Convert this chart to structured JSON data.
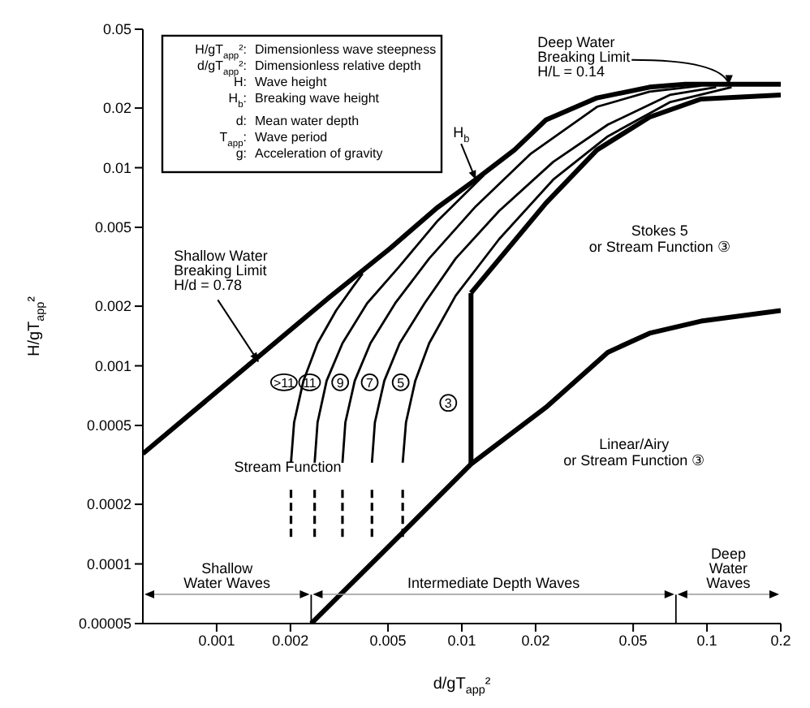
{
  "chart_data": {
    "type": "line",
    "xlabel": "d/gT$_{app}$²",
    "ylabel": "H/gT$_{app}$²",
    "log": "xy",
    "xlim": [
      0.0005,
      0.2
    ],
    "xticks": [
      0.001,
      0.002,
      0.005,
      0.01,
      0.02,
      0.05,
      0.1,
      0.2
    ],
    "ylim": [
      5e-05,
      0.05
    ],
    "yticks": [
      {
        "value": 5e-05,
        "label": "0.00005"
      },
      0.0001,
      0.0002,
      0.0005,
      0.001,
      0.002,
      0.005,
      0.01,
      0.02,
      0.05
    ],
    "grid": false,
    "legend": false,
    "marker": "none",
    "series": [
      {
        "color": "#000000",
        "x": [
          0.0005,
          0.00286,
          0.00512,
          0.00792,
          0.0114,
          0.0164,
          0.022,
          0.0356,
          0.0583,
          0.0815,
          0.2
        ],
        "values": [
          0.00036,
          0.0022,
          0.00393,
          0.00627,
          0.00871,
          0.0123,
          0.0174,
          0.0225,
          0.0255,
          0.0264,
          0.0264
        ]
      },
      {
        "color": "#000000",
        "x": [
          0.00243,
          0.00512,
          0.0109,
          0.022,
          0.0394,
          0.0583,
          0.0944,
          0.2
        ],
        "values": [
          5e-05,
          0.000125,
          0.000319,
          0.000616,
          0.00117,
          0.00146,
          0.00168,
          0.0019
        ]
      },
      {
        "color": "#000000",
        "x": [
          0.0109,
          0.0109
        ],
        "values": [
          0.000319,
          0.00233
        ]
      },
      {
        "color": "#000000",
        "x": [
          0.0109,
          0.022,
          0.0356,
          0.0583,
          0.0944,
          0.2
        ],
        "values": [
          0.00233,
          0.00661,
          0.0123,
          0.018,
          0.0222,
          0.0233
        ]
      },
      {
        "color": "#000000",
        "x": [
          0.00574,
          0.00592,
          0.00646,
          0.00736,
          0.00944,
          0.0142,
          0.0236,
          0.0394,
          0.0705,
          0.126
        ],
        "values": [
          0.000324,
          0.000518,
          0.000841,
          0.0013,
          0.00226,
          0.00436,
          0.00871,
          0.0144,
          0.0214,
          0.0255
        ]
      },
      {
        "color": "#000000",
        "x": [
          0.0043,
          0.00442,
          0.00483,
          0.00558,
          0.00705,
          0.00944,
          0.0142,
          0.0236,
          0.0394,
          0.0705,
          0.109
        ],
        "values": [
          0.000324,
          0.000518,
          0.000841,
          0.0013,
          0.00207,
          0.00348,
          0.00605,
          0.0107,
          0.0165,
          0.0233,
          0.0255
        ]
      },
      {
        "color": "#000000",
        "x": [
          0.00326,
          0.00335,
          0.00366,
          0.00424,
          0.00535,
          0.00736,
          0.0114,
          0.019,
          0.0356,
          0.0583,
          0.0944
        ],
        "values": [
          0.000324,
          0.000518,
          0.000841,
          0.0013,
          0.00207,
          0.00348,
          0.00638,
          0.0117,
          0.0203,
          0.0242,
          0.0259
        ]
      },
      {
        "color": "#000000",
        "x": [
          0.00251,
          0.00258,
          0.00281,
          0.00326,
          0.00411,
          0.00551,
          0.00792,
          0.0123
        ],
        "values": [
          0.000324,
          0.000518,
          0.000841,
          0.0013,
          0.00207,
          0.00313,
          0.00535,
          0.00917
        ]
      },
      {
        "color": "#000000",
        "x": [
          0.00201,
          0.00207,
          0.00226,
          0.00258,
          0.00307,
          0.00356,
          0.00394
        ],
        "values": [
          0.000324,
          0.000518,
          0.000841,
          0.0013,
          0.0019,
          0.00246,
          0.00292
        ]
      },
      {
        "color": "#000000",
        "line_style": "dashed",
        "x": [
          0.00201,
          0.00201
        ],
        "values": [
          0.000137,
          0.000246
        ]
      },
      {
        "color": "#000000",
        "line_style": "dashed",
        "x": [
          0.00251,
          0.00251
        ],
        "values": [
          0.000137,
          0.000246
        ]
      },
      {
        "color": "#000000",
        "line_style": "dashed",
        "x": [
          0.00326,
          0.00326
        ],
        "values": [
          0.000137,
          0.000246
        ]
      },
      {
        "color": "#000000",
        "line_style": "dashed",
        "x": [
          0.0043,
          0.0043
        ],
        "values": [
          0.000137,
          0.000246
        ]
      },
      {
        "color": "#000000",
        "line_style": "dashed",
        "x": [
          0.00574,
          0.00574
        ],
        "values": [
          0.000137,
          0.000246
        ]
      },
      {
        "color": "#000000",
        "x": [
          0.00243,
          0.00243
        ],
        "values": [
          5e-05,
          7e-05
        ]
      },
      {
        "color": "#000000",
        "x": [
          0.0747,
          0.0747
        ],
        "values": [
          5e-05,
          7e-05
        ]
      }
    ],
    "annotations": [
      "H/gT$_{app}$²: Dimensionless wave steepness",
      "d/gT$_{app}$²: Dimensionless relative depth",
      "H: Wave height",
      "H$_{b}$: Breaking wave height",
      "d: Mean water depth",
      "T$_{app}$: Wave period",
      "g: Acceleration of gravity",
      {
        "text": "Shallow Water\nBreaking Limit\nH/d = 0.78",
        "x": 0.00148,
        "y": 0.00105
      },
      {
        "text": "Deep Water\nBreaking Limit\nH/L = 0.14",
        "x": 0.123,
        "y": 0.0264
      },
      {
        "text": "H$_{b}$",
        "x": 0.0114,
        "y": 0.00871
      },
      {
        "text": ">11",
        "x": 0.00226,
        "y": 0.000841
      },
      {
        "text": "11",
        "x": 0.00281,
        "y": 0.000841
      },
      {
        "text": "9",
        "x": 0.00366,
        "y": 0.000841
      },
      {
        "text": "7",
        "x": 0.00483,
        "y": 0.000841
      },
      {
        "text": "5",
        "x": 0.00646,
        "y": 0.000841
      },
      {
        "text": "3",
        "x": 0.0109,
        "y": 0.00065
      },
      "Stokes 5\nor Stream Function ③",
      "Linear/Airy\nor Stream Function ③",
      "Stream Function",
      "Shallow\nWater Waves",
      "Intermediate Depth Waves",
      "Deep\nWater\nWaves"
    ]
  }
}
